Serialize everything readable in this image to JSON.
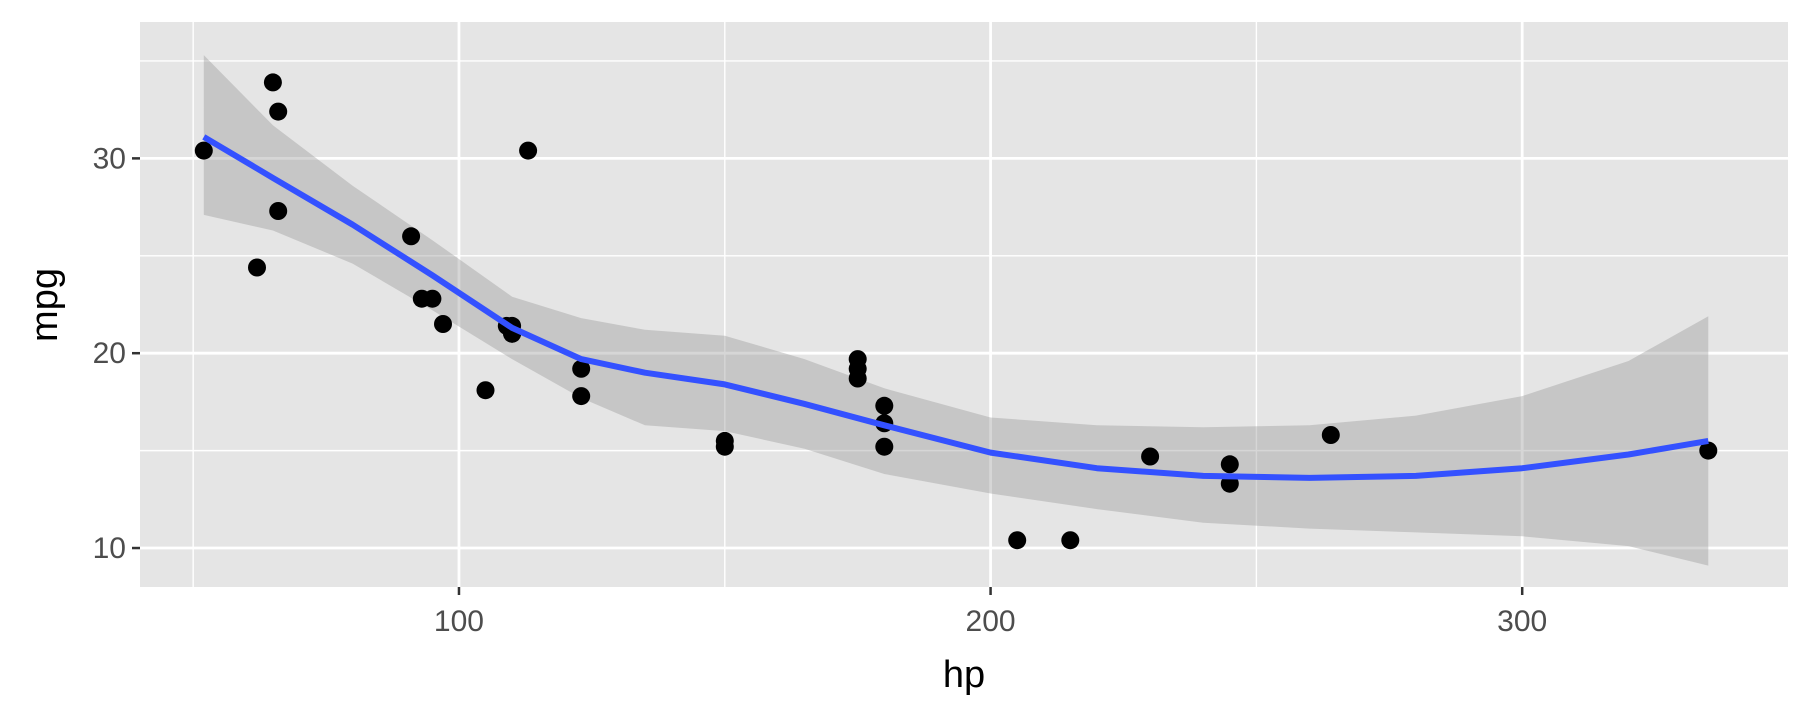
{
  "chart_data": {
    "type": "scatter",
    "title": "",
    "xlabel": "hp",
    "ylabel": "mpg",
    "xlim": [
      40,
      350
    ],
    "ylim": [
      8,
      37
    ],
    "x_ticks": [
      100,
      200,
      300
    ],
    "x_tick_labels": [
      "100",
      "200",
      "300"
    ],
    "y_ticks": [
      10,
      20,
      30
    ],
    "y_tick_labels": [
      "10",
      "20",
      "30"
    ],
    "grid": true,
    "legend": "none",
    "colors": {
      "panel": "#e5e5e5",
      "grid": "#ffffff",
      "points": "#000000",
      "smooth_line": "#3451ff",
      "confidence_band": "#999999"
    },
    "points": [
      {
        "x": 110,
        "y": 21.0
      },
      {
        "x": 110,
        "y": 21.0
      },
      {
        "x": 93,
        "y": 22.8
      },
      {
        "x": 110,
        "y": 21.4
      },
      {
        "x": 175,
        "y": 18.7
      },
      {
        "x": 105,
        "y": 18.1
      },
      {
        "x": 245,
        "y": 14.3
      },
      {
        "x": 62,
        "y": 24.4
      },
      {
        "x": 95,
        "y": 22.8
      },
      {
        "x": 123,
        "y": 19.2
      },
      {
        "x": 123,
        "y": 17.8
      },
      {
        "x": 180,
        "y": 16.4
      },
      {
        "x": 180,
        "y": 17.3
      },
      {
        "x": 180,
        "y": 15.2
      },
      {
        "x": 205,
        "y": 10.4
      },
      {
        "x": 215,
        "y": 10.4
      },
      {
        "x": 230,
        "y": 14.7
      },
      {
        "x": 66,
        "y": 32.4
      },
      {
        "x": 52,
        "y": 30.4
      },
      {
        "x": 65,
        "y": 33.9
      },
      {
        "x": 97,
        "y": 21.5
      },
      {
        "x": 150,
        "y": 15.5
      },
      {
        "x": 150,
        "y": 15.2
      },
      {
        "x": 245,
        "y": 13.3
      },
      {
        "x": 175,
        "y": 19.2
      },
      {
        "x": 66,
        "y": 27.3
      },
      {
        "x": 91,
        "y": 26.0
      },
      {
        "x": 113,
        "y": 30.4
      },
      {
        "x": 264,
        "y": 15.8
      },
      {
        "x": 175,
        "y": 19.7
      },
      {
        "x": 335,
        "y": 15.0
      },
      {
        "x": 109,
        "y": 21.4
      }
    ],
    "smooth": {
      "method": "loess",
      "x": [
        52,
        65,
        80,
        95,
        110,
        123,
        135,
        150,
        165,
        180,
        200,
        220,
        240,
        260,
        280,
        300,
        320,
        335
      ],
      "y": [
        31.1,
        29.0,
        26.6,
        24.0,
        21.3,
        19.7,
        19.0,
        18.4,
        17.4,
        16.3,
        14.9,
        14.1,
        13.7,
        13.6,
        13.7,
        14.1,
        14.8,
        15.5
      ],
      "lower": [
        27.1,
        26.3,
        24.6,
        22.2,
        19.7,
        17.7,
        16.3,
        16.0,
        15.1,
        13.8,
        12.8,
        12.0,
        11.3,
        11.0,
        10.8,
        10.6,
        10.1,
        9.1
      ],
      "upper": [
        35.3,
        31.7,
        28.6,
        25.8,
        22.9,
        21.8,
        21.2,
        20.9,
        19.7,
        18.2,
        16.7,
        16.3,
        16.2,
        16.3,
        16.8,
        17.8,
        19.6,
        21.9
      ]
    }
  }
}
